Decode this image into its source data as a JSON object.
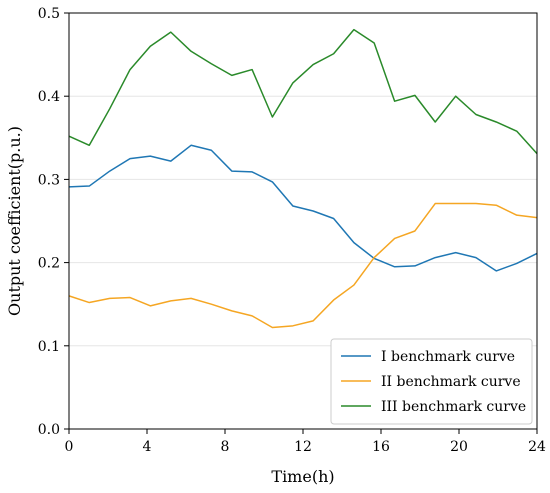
{
  "chart_data": {
    "type": "line",
    "title": "",
    "xlabel": "Time(h)",
    "ylabel": "Output coefficient(p.u.)",
    "xlim": [
      0,
      24
    ],
    "ylim": [
      0,
      0.5
    ],
    "xticks": [
      0,
      4,
      8,
      12,
      16,
      20,
      24
    ],
    "yticks": [
      0.0,
      0.1,
      0.2,
      0.3,
      0.4,
      0.5
    ],
    "xtick_labels": [
      "0",
      "4",
      "8",
      "12",
      "16",
      "20",
      "24"
    ],
    "ytick_labels": [
      "0.0",
      "0.1",
      "0.2",
      "0.3",
      "0.4",
      "0.5"
    ],
    "grid": "horizontal",
    "legend_position": "bottom-right",
    "x": [
      0,
      1.04,
      2.09,
      3.13,
      4.17,
      5.22,
      6.26,
      7.3,
      8.35,
      9.39,
      10.43,
      11.48,
      12.52,
      13.57,
      14.61,
      15.65,
      16.7,
      17.74,
      18.78,
      19.83,
      20.87,
      21.91,
      22.96,
      24
    ],
    "series": [
      {
        "name": "I benchmark curve",
        "color": "#1f77b4",
        "values": [
          0.291,
          0.292,
          0.31,
          0.325,
          0.328,
          0.322,
          0.341,
          0.335,
          0.31,
          0.309,
          0.297,
          0.268,
          0.262,
          0.253,
          0.224,
          0.205,
          0.195,
          0.196,
          0.206,
          0.212,
          0.206,
          0.19,
          0.199,
          0.211
        ]
      },
      {
        "name": "II benchmark curve",
        "color": "#f5a623",
        "values": [
          0.16,
          0.152,
          0.157,
          0.158,
          0.148,
          0.154,
          0.157,
          0.15,
          0.142,
          0.136,
          0.122,
          0.124,
          0.13,
          0.155,
          0.173,
          0.206,
          0.229,
          0.238,
          0.271,
          0.271,
          0.271,
          0.269,
          0.257,
          0.254
        ]
      },
      {
        "name": "III benchmark curve",
        "color": "#2a8a2a",
        "values": [
          0.352,
          0.341,
          0.385,
          0.432,
          0.46,
          0.477,
          0.454,
          0.439,
          0.425,
          0.432,
          0.375,
          0.416,
          0.438,
          0.451,
          0.48,
          0.464,
          0.394,
          0.401,
          0.369,
          0.4,
          0.378,
          0.369,
          0.358,
          0.331
        ]
      }
    ]
  }
}
